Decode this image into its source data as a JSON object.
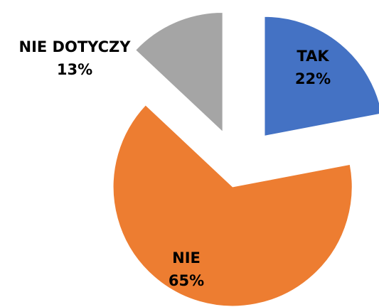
{
  "chart_data": {
    "type": "pie",
    "categories": [
      "TAK",
      "NIE",
      "NIE DOTYCZY"
    ],
    "values": [
      22,
      65,
      13
    ],
    "value_labels": [
      "22%",
      "65%",
      "13%"
    ],
    "colors": [
      "#4472c4",
      "#ed7d31",
      "#a5a5a5"
    ],
    "exploded": true
  }
}
